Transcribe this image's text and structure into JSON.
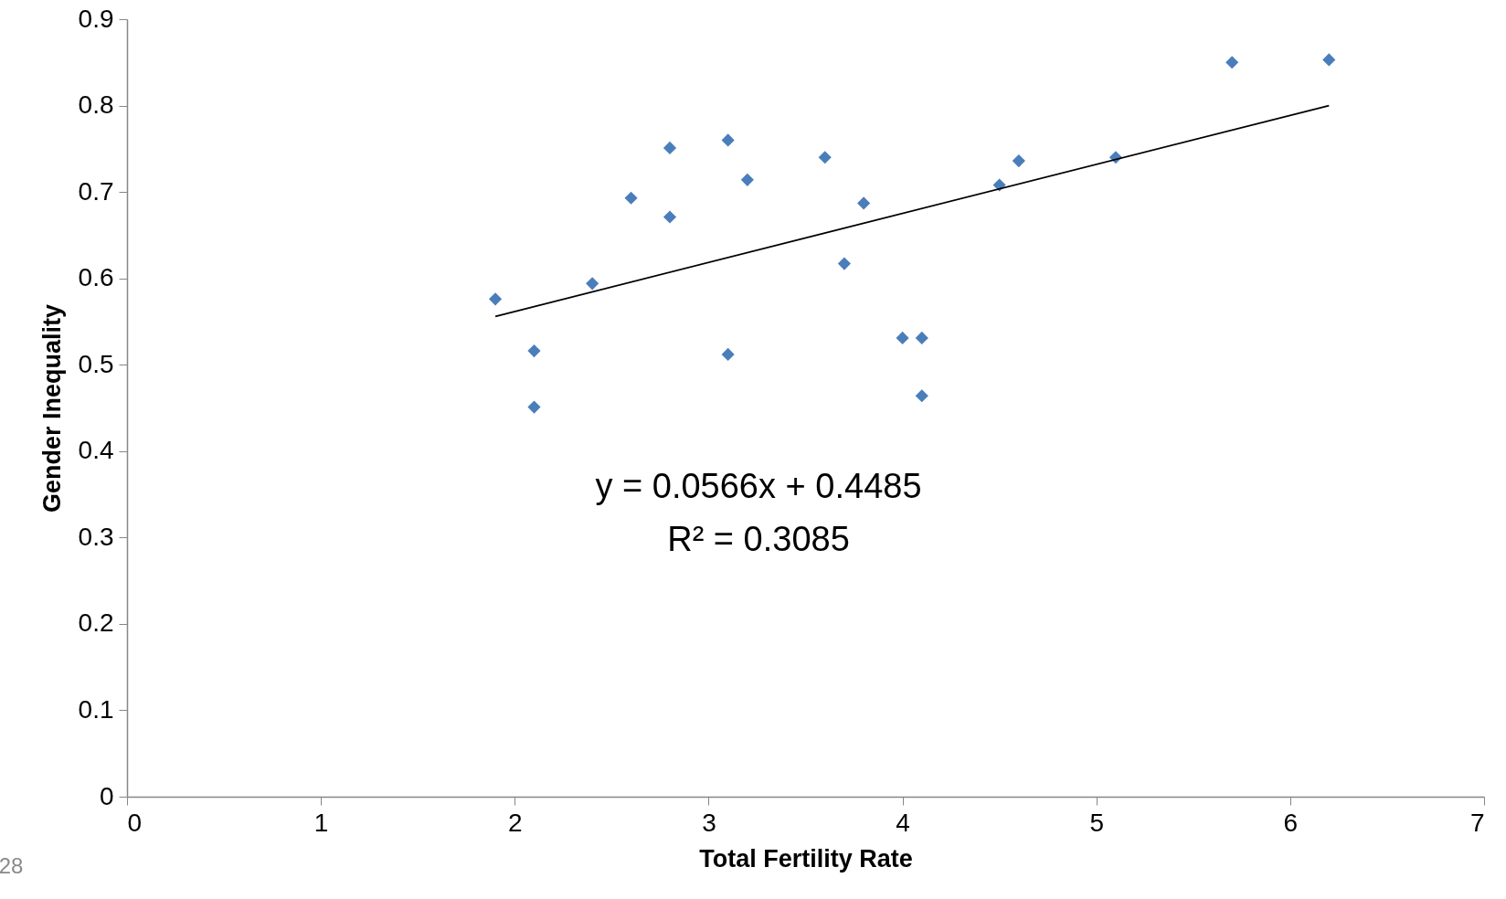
{
  "chart_data": {
    "type": "scatter",
    "xlabel": "Total Fertility Rate",
    "ylabel": "Gender Inequality",
    "xlim": [
      0,
      7
    ],
    "xticks": [
      0,
      1,
      2,
      3,
      4,
      5,
      6,
      7
    ],
    "ylim": [
      0,
      0.9
    ],
    "yticks": [
      0,
      0.1,
      0.2,
      0.3,
      0.4,
      0.5,
      0.6,
      0.7,
      0.8,
      0.9
    ],
    "line_style": "solid",
    "annotations": [
      "y = 0.0566x + 0.4485",
      "R² = 0.3085",
      "28"
    ],
    "series": [
      {
        "color": "#4a7ebb",
        "marker": "diamond",
        "x": [
          1.9,
          2.1,
          2.1,
          2.4,
          2.6,
          2.8,
          2.8,
          3.1,
          3.1,
          3.2,
          3.6,
          3.7,
          3.8,
          4.0,
          4.1,
          4.1,
          4.5,
          4.6,
          5.1,
          5.7,
          6.2
        ],
        "values": [
          0.576,
          0.516,
          0.451,
          0.594,
          0.693,
          0.751,
          0.671,
          0.76,
          0.512,
          0.714,
          0.74,
          0.617,
          0.687,
          0.531,
          0.531,
          0.464,
          0.708,
          0.736,
          0.74,
          0.85,
          0.853
        ]
      },
      {
        "type": "line",
        "marker": "none",
        "color": "#000000",
        "x": [
          1.9,
          6.2
        ],
        "values": [
          0.556,
          0.8
        ]
      }
    ]
  }
}
